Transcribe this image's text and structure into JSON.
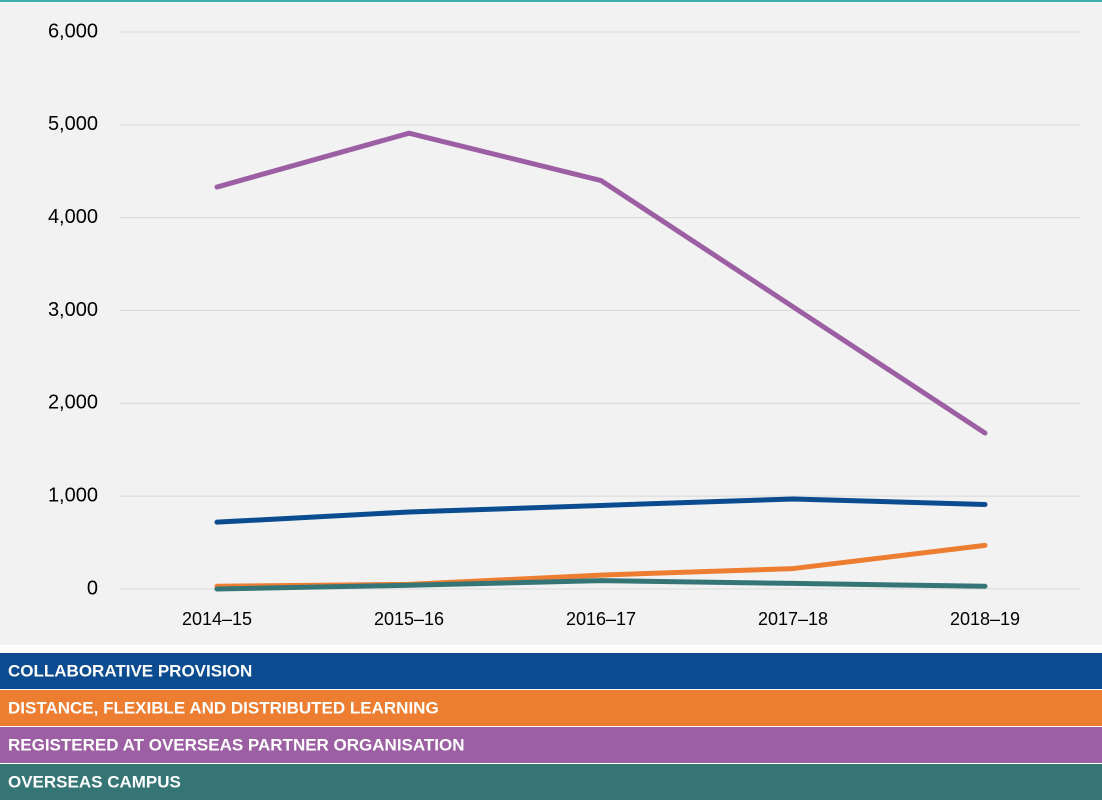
{
  "chart_data": {
    "type": "line",
    "categories": [
      "2014–15",
      "2015–16",
      "2016–17",
      "2017–18",
      "2018–19"
    ],
    "series": [
      {
        "name": "COLLABORATIVE PROVISION",
        "color": "#0b4c91",
        "values": [
          720,
          830,
          900,
          970,
          910
        ]
      },
      {
        "name": "DISTANCE, FLEXIBLE AND DISTRIBUTED LEARNING",
        "color": "#ed7d31",
        "values": [
          30,
          50,
          150,
          220,
          470
        ]
      },
      {
        "name": "REGISTERED AT OVERSEAS PARTNER ORGANISATION",
        "color": "#9c5fa3",
        "values": [
          4330,
          4910,
          4400,
          3040,
          1680
        ]
      },
      {
        "name": "OVERSEAS CAMPUS",
        "color": "#357576",
        "values": [
          0,
          40,
          90,
          60,
          30
        ]
      }
    ],
    "ylim": [
      0,
      6000
    ],
    "yticks": [
      0,
      {
        "value": 1000,
        "label": "1,000"
      },
      {
        "value": 2000,
        "label": "2,000"
      },
      {
        "value": 3000,
        "label": "3,000"
      },
      {
        "value": 4000,
        "label": "4,000"
      },
      {
        "value": 5000,
        "label": "5,000"
      },
      {
        "value": 6000,
        "label": "6,000"
      }
    ],
    "grid": true,
    "legend": "bottom"
  }
}
